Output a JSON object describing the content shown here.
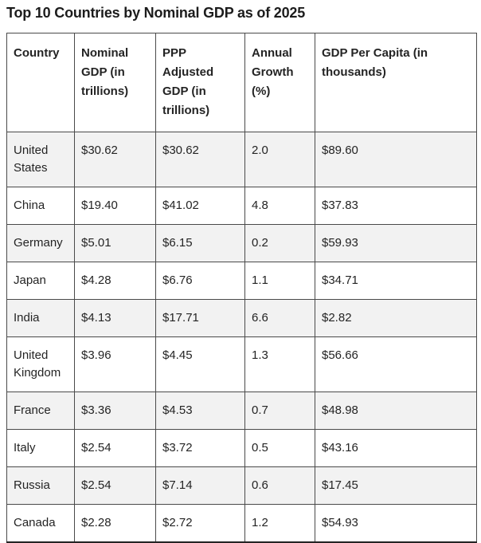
{
  "title": "Top 10 Countries by Nominal GDP as of 2025",
  "colors": {
    "row_alt_background": "#f2f2f2",
    "border": "#4a4a4a",
    "text": "#242424"
  },
  "chart_data": {
    "type": "table",
    "title": "Top 10 Countries by Nominal GDP as of 2025",
    "columns": [
      "Country",
      "Nominal GDP (in trillions)",
      "PPP Adjusted GDP (in trillions)",
      "Annual Growth (%)",
      "GDP Per Capita (in thousands)"
    ],
    "rows": [
      [
        "United States",
        "$30.62",
        "$30.62",
        "2.0",
        "$89.60"
      ],
      [
        "China",
        "$19.40",
        "$41.02",
        "4.8",
        "$37.83"
      ],
      [
        "Germany",
        "$5.01",
        "$6.15",
        "0.2",
        "$59.93"
      ],
      [
        "Japan",
        "$4.28",
        "$6.76",
        "1.1",
        "$34.71"
      ],
      [
        "India",
        "$4.13",
        "$17.71",
        "6.6",
        "$2.82"
      ],
      [
        "United Kingdom",
        "$3.96",
        "$4.45",
        "1.3",
        "$56.66"
      ],
      [
        "France",
        "$3.36",
        "$4.53",
        "0.7",
        "$48.98"
      ],
      [
        "Italy",
        "$2.54",
        "$3.72",
        "0.5",
        "$43.16"
      ],
      [
        "Russia",
        "$2.54",
        "$7.14",
        "0.6",
        "$17.45"
      ],
      [
        "Canada",
        "$2.28",
        "$2.72",
        "1.2",
        "$54.93"
      ]
    ]
  }
}
